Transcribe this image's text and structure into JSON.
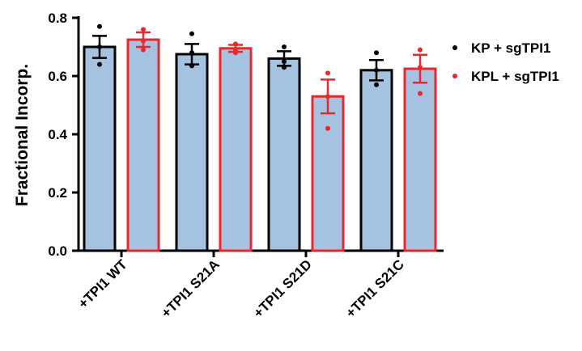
{
  "chart_data": {
    "type": "bar",
    "title": "",
    "xlabel": "",
    "ylabel": "Fractional Incorp.",
    "ylim": [
      0,
      0.8
    ],
    "yticks": [
      "0.0",
      "0.2",
      "0.4",
      "0.6",
      "0.8"
    ],
    "ytick_values": [
      0,
      0.2,
      0.4,
      0.6,
      0.8
    ],
    "categories": [
      "+TPI1 WT",
      "+TPI1 S21A",
      "+TPI1 S21D",
      "+TPI1 S21C"
    ],
    "bar_fill": "#a5c3e1",
    "legend_position": "right",
    "series": [
      {
        "name": "KP + sgTPI1",
        "color": "#000000",
        "values": [
          0.7,
          0.675,
          0.66,
          0.62
        ],
        "errors": [
          0.038,
          0.035,
          0.025,
          0.035
        ],
        "points": [
          [
            0.77,
            0.7,
            0.64
          ],
          [
            0.745,
            0.68,
            0.635
          ],
          [
            0.7,
            0.65,
            0.63
          ],
          [
            0.68,
            0.62,
            0.57
          ]
        ]
      },
      {
        "name": "KPL + sgTPI1",
        "color": "#e8282b",
        "values": [
          0.725,
          0.695,
          0.53,
          0.625
        ],
        "errors": [
          0.025,
          0.012,
          0.058,
          0.048
        ],
        "points": [
          [
            0.76,
            0.72,
            0.69
          ],
          [
            0.71,
            0.69,
            0.68
          ],
          [
            0.61,
            0.53,
            0.42
          ],
          [
            0.69,
            0.63,
            0.54
          ]
        ]
      }
    ]
  }
}
